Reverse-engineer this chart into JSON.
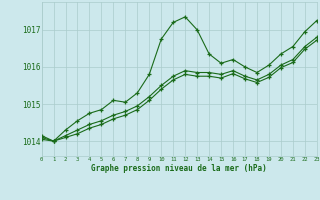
{
  "title": "Graphe pression niveau de la mer (hPa)",
  "background_color": "#cce8ec",
  "grid_color": "#aacccc",
  "line_color": "#1a6b1a",
  "x_min": 0,
  "x_max": 23,
  "y_min": 1013.6,
  "y_max": 1017.75,
  "yticks": [
    1014,
    1015,
    1016,
    1017
  ],
  "xticks": [
    0,
    1,
    2,
    3,
    4,
    5,
    6,
    7,
    8,
    9,
    10,
    11,
    12,
    13,
    14,
    15,
    16,
    17,
    18,
    19,
    20,
    21,
    22,
    23
  ],
  "series1_x": [
    0,
    1,
    2,
    3,
    4,
    5,
    6,
    7,
    8,
    9,
    10,
    11,
    12,
    13,
    14,
    15,
    16,
    17,
    18,
    19,
    20,
    21,
    22,
    23
  ],
  "series1_y": [
    1014.15,
    1014.0,
    1014.3,
    1014.55,
    1014.75,
    1014.85,
    1015.1,
    1015.05,
    1015.3,
    1015.8,
    1016.75,
    1017.2,
    1017.35,
    1017.0,
    1016.35,
    1016.1,
    1016.2,
    1016.0,
    1015.85,
    1016.05,
    1016.35,
    1016.55,
    1016.95,
    1017.25
  ],
  "series2_x": [
    0,
    1,
    2,
    3,
    4,
    5,
    6,
    7,
    8,
    9,
    10,
    11,
    12,
    13,
    14,
    15,
    16,
    17,
    18,
    19,
    20,
    21,
    22,
    23
  ],
  "series2_y": [
    1014.1,
    1014.0,
    1014.15,
    1014.3,
    1014.45,
    1014.55,
    1014.7,
    1014.8,
    1014.95,
    1015.2,
    1015.5,
    1015.75,
    1015.9,
    1015.85,
    1015.85,
    1015.8,
    1015.9,
    1015.75,
    1015.65,
    1015.8,
    1016.05,
    1016.2,
    1016.55,
    1016.8
  ],
  "series3_x": [
    0,
    1,
    2,
    3,
    4,
    5,
    6,
    7,
    8,
    9,
    10,
    11,
    12,
    13,
    14,
    15,
    16,
    17,
    18,
    19,
    20,
    21,
    22,
    23
  ],
  "series3_y": [
    1014.05,
    1014.0,
    1014.1,
    1014.2,
    1014.35,
    1014.45,
    1014.6,
    1014.7,
    1014.85,
    1015.1,
    1015.4,
    1015.65,
    1015.8,
    1015.75,
    1015.75,
    1015.7,
    1015.82,
    1015.68,
    1015.58,
    1015.72,
    1015.98,
    1016.12,
    1016.48,
    1016.72
  ]
}
